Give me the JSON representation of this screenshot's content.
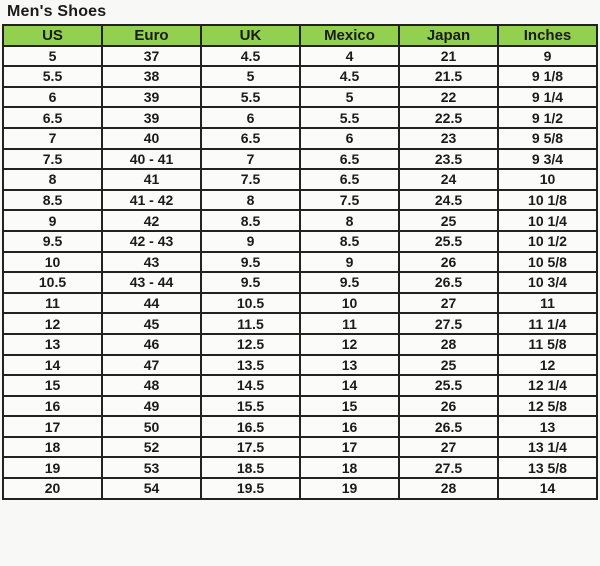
{
  "page": {
    "title": "Men's Shoes"
  },
  "colors": {
    "header_bg": "#92d050",
    "cell_bg": "#fbfbfa",
    "border": "#222222",
    "page_bg": "#f8f8f7"
  },
  "chart_data": {
    "type": "table",
    "title": "Men's Shoes",
    "columns": [
      "US",
      "Euro",
      "UK",
      "Mexico",
      "Japan",
      "Inches"
    ],
    "rows": [
      [
        "5",
        "37",
        "4.5",
        "4",
        "21",
        "9"
      ],
      [
        "5.5",
        "38",
        "5",
        "4.5",
        "21.5",
        "9 1/8"
      ],
      [
        "6",
        "39",
        "5.5",
        "5",
        "22",
        "9 1/4"
      ],
      [
        "6.5",
        "39",
        "6",
        "5.5",
        "22.5",
        "9 1/2"
      ],
      [
        "7",
        "40",
        "6.5",
        "6",
        "23",
        "9 5/8"
      ],
      [
        "7.5",
        "40 - 41",
        "7",
        "6.5",
        "23.5",
        "9 3/4"
      ],
      [
        "8",
        "41",
        "7.5",
        "6.5",
        "24",
        "10"
      ],
      [
        "8.5",
        "41 - 42",
        "8",
        "7.5",
        "24.5",
        "10 1/8"
      ],
      [
        "9",
        "42",
        "8.5",
        "8",
        "25",
        "10 1/4"
      ],
      [
        "9.5",
        "42 - 43",
        "9",
        "8.5",
        "25.5",
        "10 1/2"
      ],
      [
        "10",
        "43",
        "9.5",
        "9",
        "26",
        "10 5/8"
      ],
      [
        "10.5",
        "43 - 44",
        "9.5",
        "9.5",
        "26.5",
        "10 3/4"
      ],
      [
        "11",
        "44",
        "10.5",
        "10",
        "27",
        "11"
      ],
      [
        "12",
        "45",
        "11.5",
        "11",
        "27.5",
        "11 1/4"
      ],
      [
        "13",
        "46",
        "12.5",
        "12",
        "28",
        "11 5/8"
      ],
      [
        "14",
        "47",
        "13.5",
        "13",
        "25",
        "12"
      ],
      [
        "15",
        "48",
        "14.5",
        "14",
        "25.5",
        "12 1/4"
      ],
      [
        "16",
        "49",
        "15.5",
        "15",
        "26",
        "12 5/8"
      ],
      [
        "17",
        "50",
        "16.5",
        "16",
        "26.5",
        "13"
      ],
      [
        "18",
        "52",
        "17.5",
        "17",
        "27",
        "13 1/4"
      ],
      [
        "19",
        "53",
        "18.5",
        "18",
        "27.5",
        "13 5/8"
      ],
      [
        "20",
        "54",
        "19.5",
        "19",
        "28",
        "14"
      ]
    ]
  }
}
